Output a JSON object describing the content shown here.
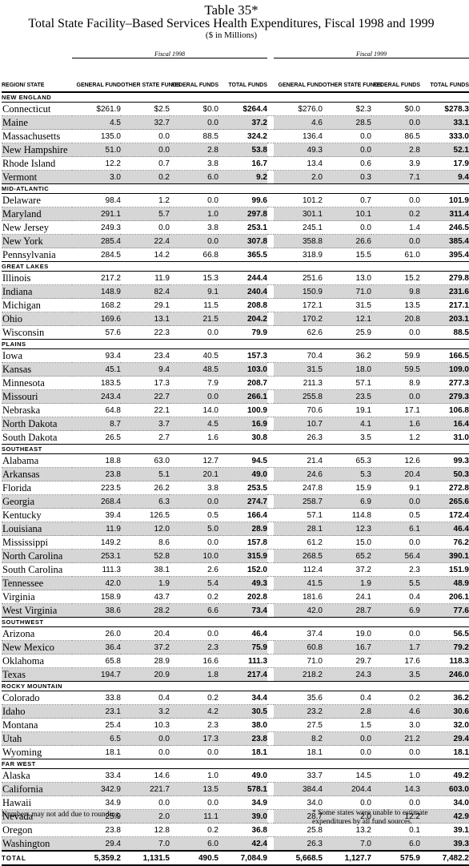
{
  "title": {
    "table_no": "Table 35*",
    "main": "Total State Facility–Based Services Health Expenditures, Fiscal 1998 and 1999",
    "units": "($ in Millions)"
  },
  "fiscal_labels": [
    "Fiscal 1998",
    "Fiscal 1999"
  ],
  "columns": {
    "region": "REGION/ STATE",
    "general": "GENERAL FUND",
    "other": "OTHER STATE FUNDS",
    "federal": "FEDERAL FUNDS",
    "total": "TOTAL FUNDS"
  },
  "regions": [
    {
      "name": "NEW ENGLAND",
      "rows": [
        [
          "Connecticut",
          "$261.9",
          "$2.5",
          "$0.0",
          "$264.4",
          "$276.0",
          "$2.3",
          "$0.0",
          "$278.3"
        ],
        [
          "Maine",
          "4.5",
          "32.7",
          "0.0",
          "37.2",
          "4.6",
          "28.5",
          "0.0",
          "33.1"
        ],
        [
          "Massachusetts",
          "135.0",
          "0.0",
          "88.5",
          "324.2",
          "136.4",
          "0.0",
          "86.5",
          "333.0"
        ],
        [
          "New Hampshire",
          "51.0",
          "0.0",
          "2.8",
          "53.8",
          "49.3",
          "0.0",
          "2.8",
          "52.1"
        ],
        [
          "Rhode Island",
          "12.2",
          "0.7",
          "3.8",
          "16.7",
          "13.4",
          "0.6",
          "3.9",
          "17.9"
        ],
        [
          "Vermont",
          "3.0",
          "0.2",
          "6.0",
          "9.2",
          "2.0",
          "0.3",
          "7.1",
          "9.4"
        ]
      ]
    },
    {
      "name": "MID-ATLANTIC",
      "rows": [
        [
          "Delaware",
          "98.4",
          "1.2",
          "0.0",
          "99.6",
          "101.2",
          "0.7",
          "0.0",
          "101.9"
        ],
        [
          "Maryland",
          "291.1",
          "5.7",
          "1.0",
          "297.8",
          "301.1",
          "10.1",
          "0.2",
          "311.4"
        ],
        [
          "New Jersey",
          "249.3",
          "0.0",
          "3.8",
          "253.1",
          "245.1",
          "0.0",
          "1.4",
          "246.5"
        ],
        [
          "New York",
          "285.4",
          "22.4",
          "0.0",
          "307.8",
          "358.8",
          "26.6",
          "0.0",
          "385.4"
        ],
        [
          "Pennsylvania",
          "284.5",
          "14.2",
          "66.8",
          "365.5",
          "318.9",
          "15.5",
          "61.0",
          "395.4"
        ]
      ]
    },
    {
      "name": "GREAT LAKES",
      "rows": [
        [
          "Illinois",
          "217.2",
          "11.9",
          "15.3",
          "244.4",
          "251.6",
          "13.0",
          "15.2",
          "279.8"
        ],
        [
          "Indiana",
          "148.9",
          "82.4",
          "9.1",
          "240.4",
          "150.9",
          "71.0",
          "9.8",
          "231.6"
        ],
        [
          "Michigan",
          "168.2",
          "29.1",
          "11.5",
          "208.8",
          "172.1",
          "31.5",
          "13.5",
          "217.1"
        ],
        [
          "Ohio",
          "169.6",
          "13.1",
          "21.5",
          "204.2",
          "170.2",
          "12.1",
          "20.8",
          "203.1"
        ],
        [
          "Wisconsin",
          "57.6",
          "22.3",
          "0.0",
          "79.9",
          "62.6",
          "25.9",
          "0.0",
          "88.5"
        ]
      ]
    },
    {
      "name": "PLAINS",
      "rows": [
        [
          "Iowa",
          "93.4",
          "23.4",
          "40.5",
          "157.3",
          "70.4",
          "36.2",
          "59.9",
          "166.5"
        ],
        [
          "Kansas",
          "45.1",
          "9.4",
          "48.5",
          "103.0",
          "31.5",
          "18.0",
          "59.5",
          "109.0"
        ],
        [
          "Minnesota",
          "183.5",
          "17.3",
          "7.9",
          "208.7",
          "211.3",
          "57.1",
          "8.9",
          "277.3"
        ],
        [
          "Missouri",
          "243.4",
          "22.7",
          "0.0",
          "266.1",
          "255.8",
          "23.5",
          "0.0",
          "279.3"
        ],
        [
          "Nebraska",
          "64.8",
          "22.1",
          "14.0",
          "100.9",
          "70.6",
          "19.1",
          "17.1",
          "106.8"
        ],
        [
          "North Dakota",
          "8.7",
          "3.7",
          "4.5",
          "16.9",
          "10.7",
          "4.1",
          "1.6",
          "16.4"
        ],
        [
          "South Dakota",
          "26.5",
          "2.7",
          "1.6",
          "30.8",
          "26.3",
          "3.5",
          "1.2",
          "31.0"
        ]
      ]
    },
    {
      "name": "SOUTHEAST",
      "rows": [
        [
          "Alabama",
          "18.8",
          "63.0",
          "12.7",
          "94.5",
          "21.4",
          "65.3",
          "12.6",
          "99.3"
        ],
        [
          "Arkansas",
          "23.8",
          "5.1",
          "20.1",
          "49.0",
          "24.6",
          "5.3",
          "20.4",
          "50.3"
        ],
        [
          "Florida",
          "223.5",
          "26.2",
          "3.8",
          "253.5",
          "247.8",
          "15.9",
          "9.1",
          "272.8"
        ],
        [
          "Georgia",
          "268.4",
          "6.3",
          "0.0",
          "274.7",
          "258.7",
          "6.9",
          "0.0",
          "265.6"
        ],
        [
          "Kentucky",
          "39.4",
          "126.5",
          "0.5",
          "166.4",
          "57.1",
          "114.8",
          "0.5",
          "172.4"
        ],
        [
          "Louisiana",
          "11.9",
          "12.0",
          "5.0",
          "28.9",
          "28.1",
          "12.3",
          "6.1",
          "46.4"
        ],
        [
          "Mississippi",
          "149.2",
          "8.6",
          "0.0",
          "157.8",
          "61.2",
          "15.0",
          "0.0",
          "76.2"
        ],
        [
          "North Carolina",
          "253.1",
          "52.8",
          "10.0",
          "315.9",
          "268.5",
          "65.2",
          "56.4",
          "390.1"
        ],
        [
          "South Carolina",
          "111.3",
          "38.1",
          "2.6",
          "152.0",
          "112.4",
          "37.2",
          "2.3",
          "151.9"
        ],
        [
          "Tennessee",
          "42.0",
          "1.9",
          "5.4",
          "49.3",
          "41.5",
          "1.9",
          "5.5",
          "48.9"
        ],
        [
          "Virginia",
          "158.9",
          "43.7",
          "0.2",
          "202.8",
          "181.6",
          "24.1",
          "0.4",
          "206.1"
        ],
        [
          "West Virginia",
          "38.6",
          "28.2",
          "6.6",
          "73.4",
          "42.0",
          "28.7",
          "6.9",
          "77.6"
        ]
      ]
    },
    {
      "name": "SOUTHWEST",
      "rows": [
        [
          "Arizona",
          "26.0",
          "20.4",
          "0.0",
          "46.4",
          "37.4",
          "19.0",
          "0.0",
          "56.5"
        ],
        [
          "New Mexico",
          "36.4",
          "37.2",
          "2.3",
          "75.9",
          "60.8",
          "16.7",
          "1.7",
          "79.2"
        ],
        [
          "Oklahoma",
          "65.8",
          "28.9",
          "16.6",
          "111.3",
          "71.0",
          "29.7",
          "17.6",
          "118.3"
        ],
        [
          "Texas",
          "194.7",
          "20.9",
          "1.8",
          "217.4",
          "218.2",
          "24.3",
          "3.5",
          "246.0"
        ]
      ]
    },
    {
      "name": "ROCKY MOUNTAIN",
      "rows": [
        [
          "Colorado",
          "33.8",
          "0.4",
          "0.2",
          "34.4",
          "35.6",
          "0.4",
          "0.2",
          "36.2"
        ],
        [
          "Idaho",
          "23.1",
          "3.2",
          "4.2",
          "30.5",
          "23.2",
          "2.8",
          "4.6",
          "30.6"
        ],
        [
          "Montana",
          "25.4",
          "10.3",
          "2.3",
          "38.0",
          "27.5",
          "1.5",
          "3.0",
          "32.0"
        ],
        [
          "Utah",
          "6.5",
          "0.0",
          "17.3",
          "23.8",
          "8.2",
          "0.0",
          "21.2",
          "29.4"
        ],
        [
          "Wyoming",
          "18.1",
          "0.0",
          "0.0",
          "18.1",
          "18.1",
          "0.0",
          "0.0",
          "18.1"
        ]
      ]
    },
    {
      "name": "FAR WEST",
      "rows": [
        [
          "Alaska",
          "33.4",
          "14.6",
          "1.0",
          "49.0",
          "33.7",
          "14.5",
          "1.0",
          "49.2"
        ],
        [
          "California",
          "342.9",
          "221.7",
          "13.5",
          "578.1",
          "384.4",
          "204.4",
          "14.3",
          "603.0"
        ],
        [
          "Hawaii",
          "34.9",
          "0.0",
          "0.0",
          "34.9",
          "34.0",
          "0.0",
          "0.0",
          "34.0"
        ],
        [
          "Nevada",
          "25.9",
          "2.0",
          "11.1",
          "39.0",
          "28.7",
          "2.0",
          "12.2",
          "42.9"
        ],
        [
          "Oregon",
          "23.8",
          "12.8",
          "0.2",
          "36.8",
          "25.8",
          "13.2",
          "0.1",
          "39.1"
        ],
        [
          "Washington",
          "29.4",
          "7.0",
          "6.0",
          "42.4",
          "26.3",
          "7.0",
          "6.0",
          "39.3"
        ]
      ]
    }
  ],
  "total": [
    "TOTAL",
    "5,359.2",
    "1,131.5",
    "490.5",
    "7,084.9",
    "5,668.5",
    "1,127.7",
    "575.9",
    "7,482.2"
  ],
  "footer": {
    "note_left": "Numbers may not add due to rounding.",
    "note_right": "* Some states were unable to estimate expenditures by all fund sources."
  }
}
